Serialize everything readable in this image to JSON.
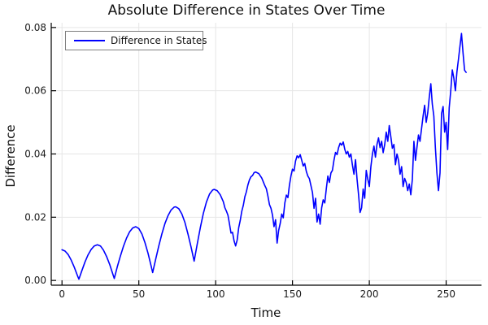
{
  "chart_data": {
    "type": "line",
    "title": "Absolute Difference in States Over Time",
    "xlabel": "Time",
    "ylabel": "Difference",
    "xlim": [
      -7,
      273
    ],
    "ylim": [
      -0.0015,
      0.0815
    ],
    "grid": true,
    "legend": {
      "position": "top-left",
      "label": "Difference in States"
    },
    "xticks": {
      "values": [
        0,
        50,
        100,
        150,
        200,
        250
      ],
      "labels": [
        "0",
        "50",
        "100",
        "150",
        "200",
        "250"
      ]
    },
    "yticks": {
      "values": [
        0,
        0.02,
        0.04,
        0.06,
        0.08
      ],
      "labels": [
        "0.00",
        "0.02",
        "0.04",
        "0.06",
        "0.08"
      ]
    },
    "colors": {
      "series": "#0000ff",
      "grid": "#e6e6e6",
      "axis": "#000000",
      "tick_label": "#1a1a1a",
      "title": "#111111",
      "legend_border": "#7f7f7f",
      "background": "#ffffff"
    },
    "series": [
      {
        "name": "Difference in States",
        "color": "#0000ff",
        "points": [
          [
            0,
            0.0097
          ],
          [
            2,
            0.0093
          ],
          [
            4,
            0.0082
          ],
          [
            6,
            0.0064
          ],
          [
            8,
            0.0042
          ],
          [
            10,
            0.0016
          ],
          [
            11,
            0.0004
          ],
          [
            13,
            0.0032
          ],
          [
            15,
            0.0059
          ],
          [
            17,
            0.0081
          ],
          [
            19,
            0.0098
          ],
          [
            21,
            0.0109
          ],
          [
            23,
            0.0113
          ],
          [
            25,
            0.0109
          ],
          [
            27,
            0.0096
          ],
          [
            29,
            0.0076
          ],
          [
            31,
            0.0051
          ],
          [
            33,
            0.0021
          ],
          [
            34,
            0.0006
          ],
          [
            36,
            0.0043
          ],
          [
            38,
            0.0077
          ],
          [
            40,
            0.0108
          ],
          [
            42,
            0.0134
          ],
          [
            44,
            0.0154
          ],
          [
            46,
            0.0166
          ],
          [
            48,
            0.017
          ],
          [
            50,
            0.0164
          ],
          [
            52,
            0.0147
          ],
          [
            54,
            0.012
          ],
          [
            56,
            0.0086
          ],
          [
            58,
            0.0046
          ],
          [
            59,
            0.0025
          ],
          [
            61,
            0.0068
          ],
          [
            63,
            0.011
          ],
          [
            65,
            0.0147
          ],
          [
            67,
            0.018
          ],
          [
            69,
            0.0205
          ],
          [
            71,
            0.0223
          ],
          [
            73,
            0.0232
          ],
          [
            74,
            0.0233
          ],
          [
            76,
            0.0227
          ],
          [
            78,
            0.021
          ],
          [
            80,
            0.0183
          ],
          [
            82,
            0.0147
          ],
          [
            84,
            0.0106
          ],
          [
            86,
            0.0061
          ],
          [
            88,
            0.0115
          ],
          [
            90,
            0.0167
          ],
          [
            92,
            0.0212
          ],
          [
            94,
            0.0248
          ],
          [
            96,
            0.0273
          ],
          [
            98,
            0.0286
          ],
          [
            99,
            0.0288
          ],
          [
            101,
            0.0284
          ],
          [
            103,
            0.0271
          ],
          [
            105,
            0.0249
          ],
          [
            106,
            0.023
          ],
          [
            107,
            0.0219
          ],
          [
            108,
            0.0206
          ],
          [
            109,
            0.0178
          ],
          [
            110,
            0.015
          ],
          [
            111,
            0.0152
          ],
          [
            112,
            0.0125
          ],
          [
            113,
            0.0109
          ],
          [
            114,
            0.0128
          ],
          [
            115,
            0.0167
          ],
          [
            116,
            0.019
          ],
          [
            117,
            0.0219
          ],
          [
            118,
            0.0238
          ],
          [
            119,
            0.0265
          ],
          [
            120,
            0.028
          ],
          [
            121,
            0.0302
          ],
          [
            122,
            0.0318
          ],
          [
            123,
            0.0328
          ],
          [
            124,
            0.0332
          ],
          [
            125,
            0.0341
          ],
          [
            126,
            0.0343
          ],
          [
            128,
            0.0338
          ],
          [
            130,
            0.0324
          ],
          [
            132,
            0.03
          ],
          [
            133,
            0.029
          ],
          [
            134,
            0.0267
          ],
          [
            135,
            0.024
          ],
          [
            136,
            0.0228
          ],
          [
            137,
            0.0206
          ],
          [
            138,
            0.017
          ],
          [
            139,
            0.0192
          ],
          [
            140,
            0.0118
          ],
          [
            141,
            0.0158
          ],
          [
            142,
            0.018
          ],
          [
            143,
            0.021
          ],
          [
            144,
            0.0198
          ],
          [
            145,
            0.0245
          ],
          [
            146,
            0.027
          ],
          [
            147,
            0.0262
          ],
          [
            148,
            0.03
          ],
          [
            149,
            0.033
          ],
          [
            150,
            0.0352
          ],
          [
            151,
            0.0346
          ],
          [
            152,
            0.0378
          ],
          [
            153,
            0.0394
          ],
          [
            154,
            0.0388
          ],
          [
            155,
            0.0398
          ],
          [
            156,
            0.038
          ],
          [
            157,
            0.0362
          ],
          [
            158,
            0.037
          ],
          [
            159,
            0.0345
          ],
          [
            160,
            0.033
          ],
          [
            161,
            0.0322
          ],
          [
            162,
            0.03
          ],
          [
            163,
            0.0278
          ],
          [
            164,
            0.0228
          ],
          [
            165,
            0.026
          ],
          [
            166,
            0.0185
          ],
          [
            167,
            0.021
          ],
          [
            168,
            0.0178
          ],
          [
            169,
            0.023
          ],
          [
            170,
            0.0255
          ],
          [
            171,
            0.0245
          ],
          [
            172,
            0.029
          ],
          [
            173,
            0.033
          ],
          [
            174,
            0.031
          ],
          [
            175,
            0.034
          ],
          [
            176,
            0.0348
          ],
          [
            177,
            0.038
          ],
          [
            178,
            0.0405
          ],
          [
            179,
            0.0398
          ],
          [
            180,
            0.042
          ],
          [
            181,
            0.0434
          ],
          [
            182,
            0.0428
          ],
          [
            183,
            0.0438
          ],
          [
            184,
            0.0415
          ],
          [
            185,
            0.04
          ],
          [
            186,
            0.0408
          ],
          [
            187,
            0.039
          ],
          [
            188,
            0.04
          ],
          [
            189,
            0.0365
          ],
          [
            190,
            0.0336
          ],
          [
            191,
            0.0382
          ],
          [
            192,
            0.032
          ],
          [
            193,
            0.027
          ],
          [
            194,
            0.0215
          ],
          [
            195,
            0.023
          ],
          [
            196,
            0.0289
          ],
          [
            197,
            0.026
          ],
          [
            198,
            0.0348
          ],
          [
            199,
            0.032
          ],
          [
            200,
            0.0297
          ],
          [
            201,
            0.036
          ],
          [
            202,
            0.04
          ],
          [
            203,
            0.0425
          ],
          [
            204,
            0.039
          ],
          [
            205,
            0.043
          ],
          [
            206,
            0.0451
          ],
          [
            207,
            0.042
          ],
          [
            208,
            0.044
          ],
          [
            209,
            0.0404
          ],
          [
            210,
            0.043
          ],
          [
            211,
            0.0469
          ],
          [
            212,
            0.044
          ],
          [
            213,
            0.049
          ],
          [
            214,
            0.0455
          ],
          [
            215,
            0.0418
          ],
          [
            216,
            0.043
          ],
          [
            217,
            0.0366
          ],
          [
            218,
            0.04
          ],
          [
            219,
            0.038
          ],
          [
            220,
            0.0336
          ],
          [
            221,
            0.036
          ],
          [
            222,
            0.0297
          ],
          [
            223,
            0.0323
          ],
          [
            224,
            0.031
          ],
          [
            225,
            0.0284
          ],
          [
            226,
            0.0305
          ],
          [
            227,
            0.0271
          ],
          [
            228,
            0.032
          ],
          [
            229,
            0.044
          ],
          [
            230,
            0.038
          ],
          [
            231,
            0.042
          ],
          [
            232,
            0.046
          ],
          [
            233,
            0.044
          ],
          [
            234,
            0.048
          ],
          [
            235,
            0.052
          ],
          [
            236,
            0.0554
          ],
          [
            237,
            0.05
          ],
          [
            238,
            0.053
          ],
          [
            239,
            0.058
          ],
          [
            240,
            0.0622
          ],
          [
            241,
            0.0558
          ],
          [
            242,
            0.052
          ],
          [
            243,
            0.042
          ],
          [
            244,
            0.034
          ],
          [
            245,
            0.0284
          ],
          [
            246,
            0.034
          ],
          [
            247,
            0.0528
          ],
          [
            248,
            0.055
          ],
          [
            249,
            0.0469
          ],
          [
            250,
            0.05
          ],
          [
            251,
            0.0414
          ],
          [
            252,
            0.0546
          ],
          [
            253,
            0.06
          ],
          [
            254,
            0.0666
          ],
          [
            255,
            0.064
          ],
          [
            256,
            0.06
          ],
          [
            257,
            0.066
          ],
          [
            258,
            0.07
          ],
          [
            259,
            0.074
          ],
          [
            260,
            0.0781
          ],
          [
            261,
            0.072
          ],
          [
            262,
            0.0665
          ],
          [
            263,
            0.0658
          ]
        ]
      }
    ]
  }
}
